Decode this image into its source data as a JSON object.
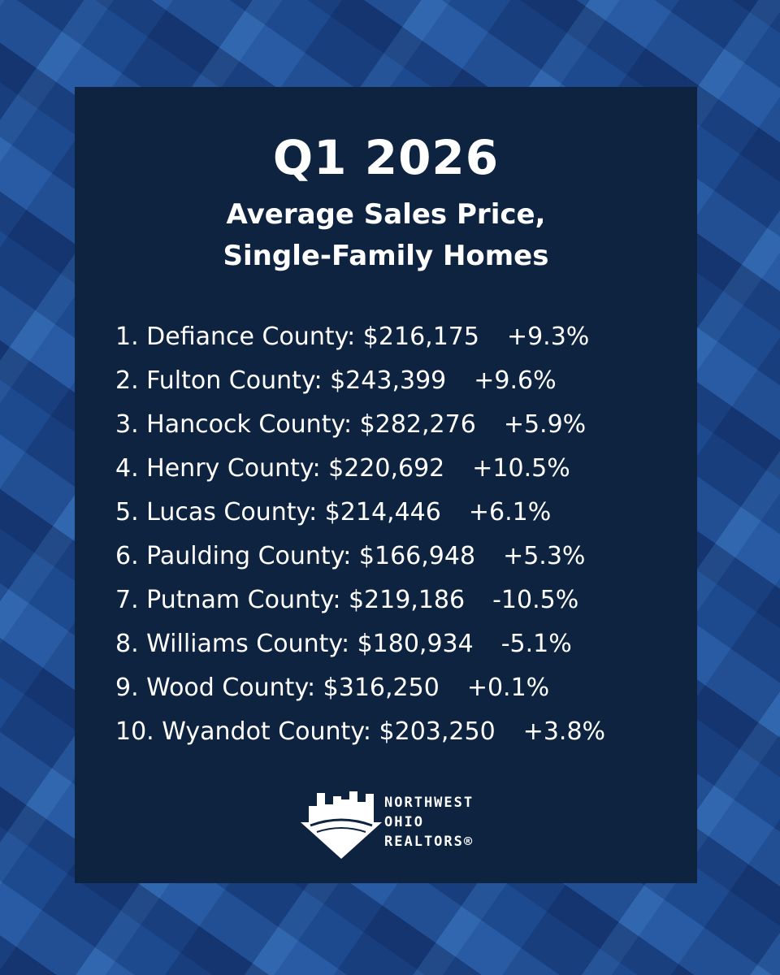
{
  "header": {
    "title": "Q1 2026",
    "subtitle_lines": [
      "Average Sales Price,",
      "Single-Family Homes"
    ]
  },
  "list": [
    {
      "label": "1. Defiance County: $216,175",
      "change": "+9.3%"
    },
    {
      "label": "2. Fulton County: $243,399",
      "change": "+9.6%"
    },
    {
      "label": "3. Hancock County: $282,276",
      "change": "+5.9%"
    },
    {
      "label": "4. Henry County: $220,692",
      "change": "+10.5%"
    },
    {
      "label": "5. Lucas County: $214,446",
      "change": "+6.1%"
    },
    {
      "label": "6. Paulding County: $166,948",
      "change": "+5.3%"
    },
    {
      "label": "7. Putnam County: $219,186",
      "change": "-10.5%"
    },
    {
      "label": "8. Williams County: $180,934",
      "change": "-5.1%"
    },
    {
      "label": "9. Wood County: $316,250",
      "change": "+0.1%"
    },
    {
      "label": "10. Wyandot County: $203,250",
      "change": "+3.8%"
    }
  ],
  "logo": {
    "lines": [
      "NORTHWEST",
      "OHIO",
      "REALTORS®"
    ]
  }
}
